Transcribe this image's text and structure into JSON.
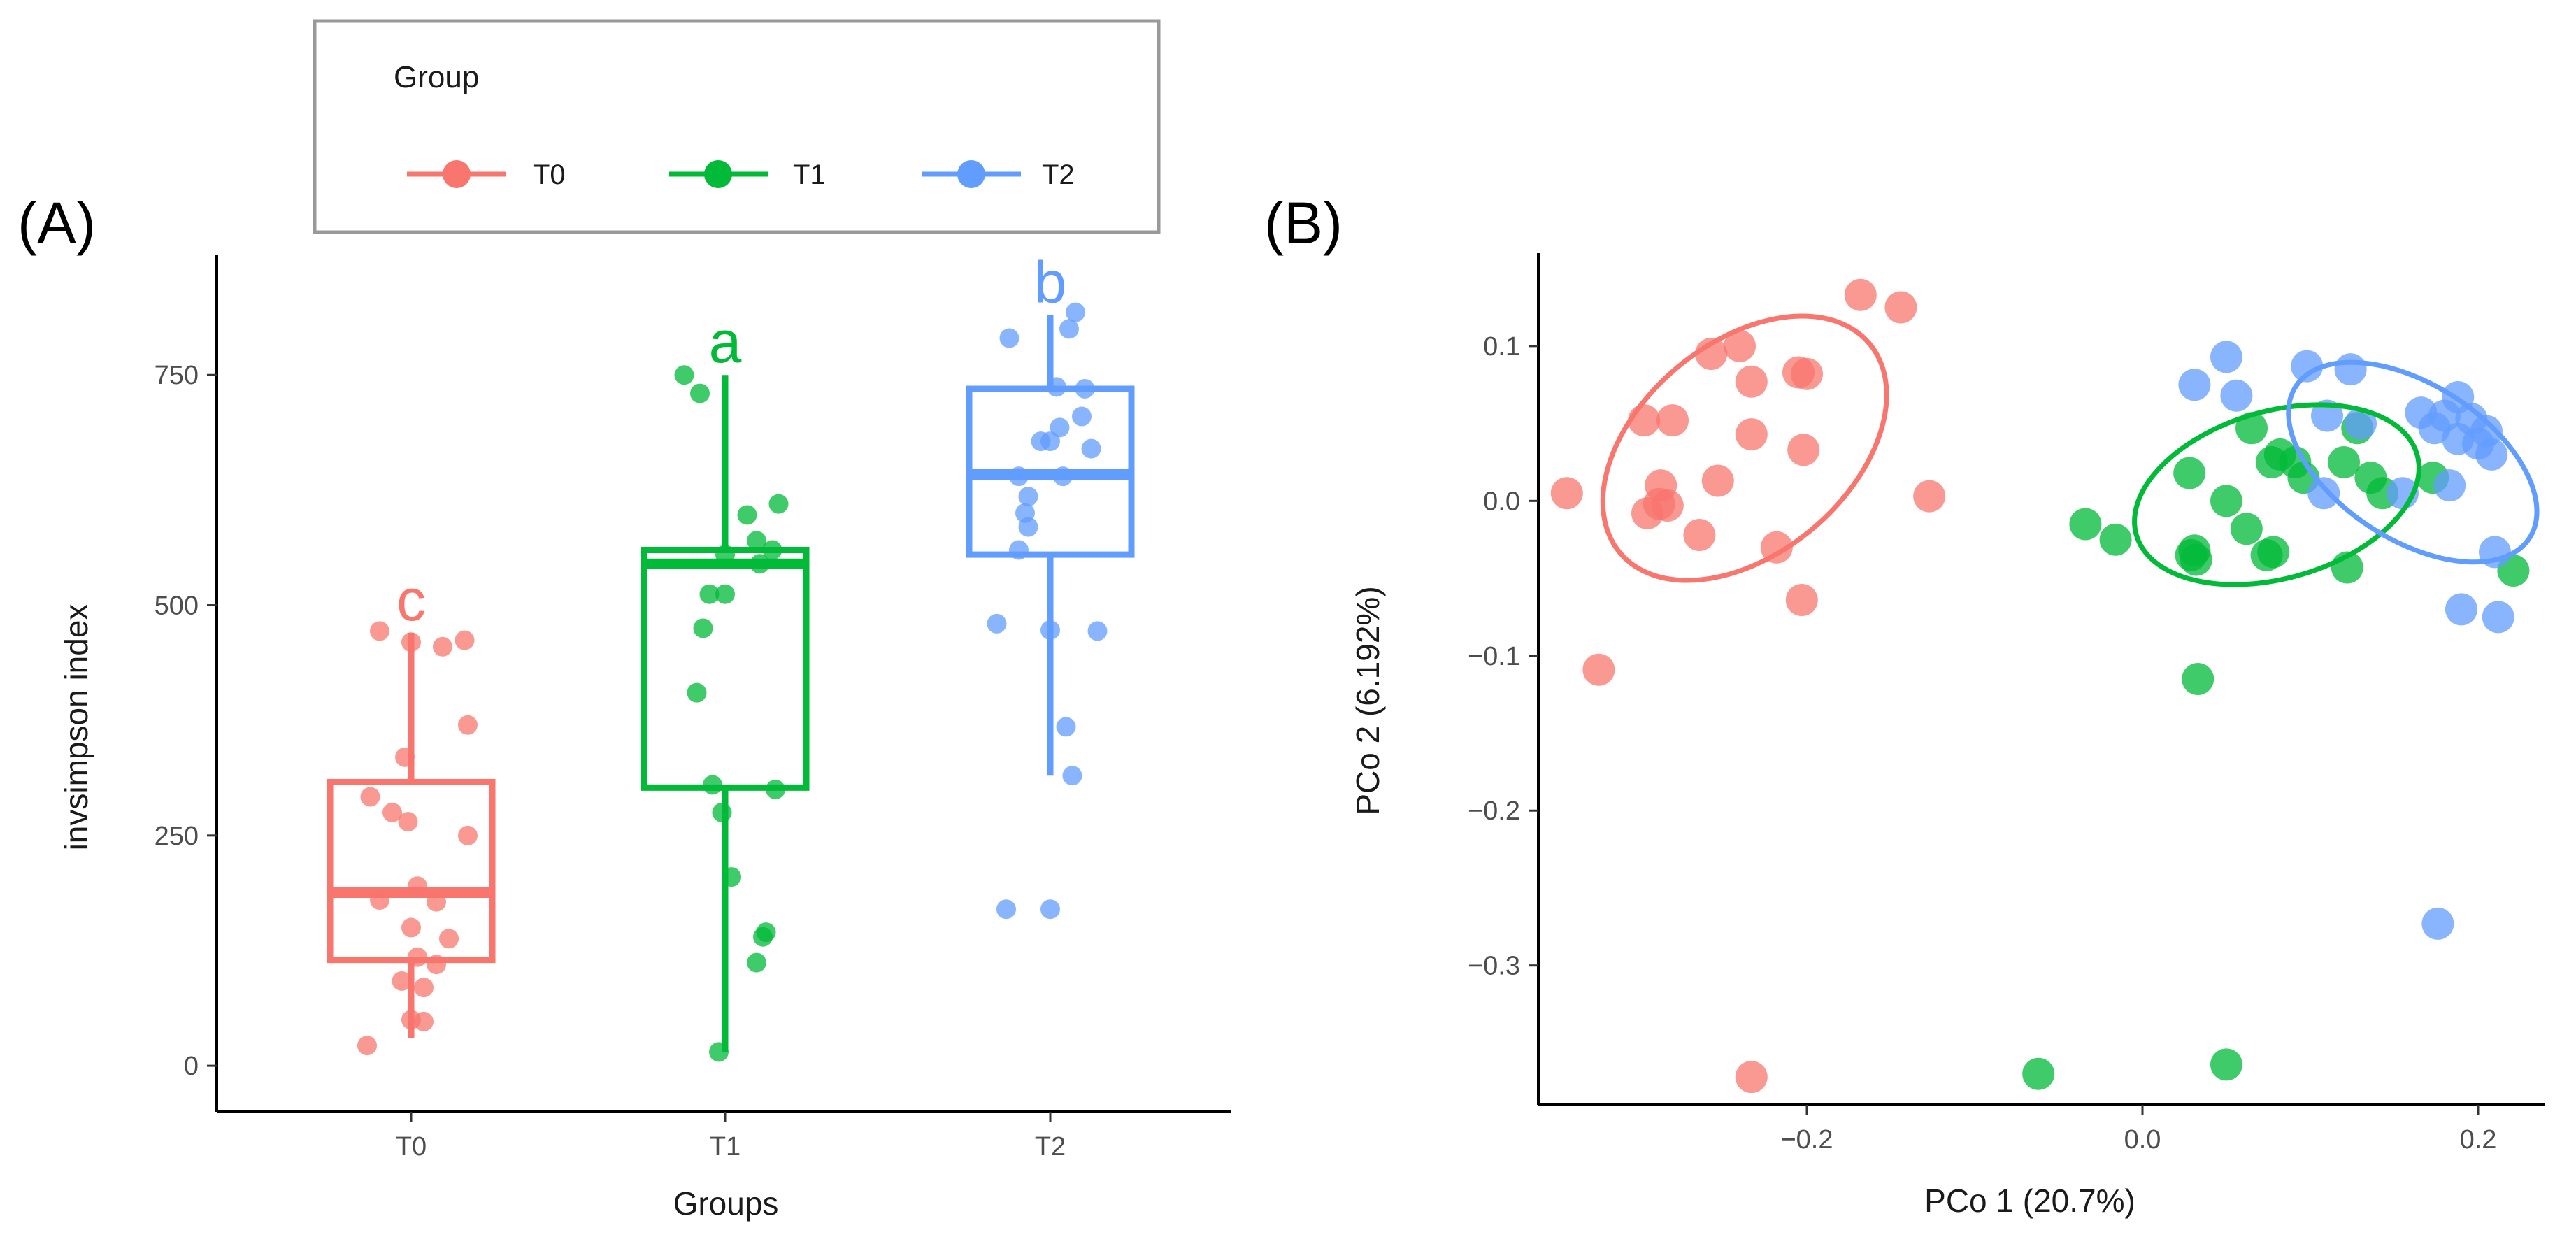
{
  "colors": {
    "T0": "#F8766D",
    "T1": "#00BA38",
    "T2": "#619CFF"
  },
  "legend": {
    "title": "Group",
    "entries": [
      {
        "label": "T0",
        "color": "#F8766D"
      },
      {
        "label": "T1",
        "color": "#00BA38"
      },
      {
        "label": "T2",
        "color": "#619CFF"
      }
    ]
  },
  "chart_data": [
    {
      "panel_label": "(A)",
      "type": "box",
      "title": "",
      "xlabel": "Groups",
      "ylabel": "invsimpson index",
      "ylim": [
        -50,
        880
      ],
      "yticks": [
        0,
        250,
        500,
        750
      ],
      "categories": [
        "T0",
        "T1",
        "T2"
      ],
      "boxes": [
        {
          "group": "T0",
          "whisker_low": 30,
          "q1": 115,
          "median": 188,
          "q3": 308,
          "whisker_high": 470,
          "letter": "c"
        },
        {
          "group": "T1",
          "whisker_low": 15,
          "q1": 302,
          "median": 545,
          "q3": 560,
          "whisker_high": 750,
          "letter": "a"
        },
        {
          "group": "T2",
          "whisker_low": 315,
          "q1": 555,
          "median": 642,
          "q3": 735,
          "whisker_high": 815,
          "letter": "b"
        }
      ],
      "points": {
        "T0": [
          [
            -0.1,
            472
          ],
          [
            0.1,
            455
          ],
          [
            0.17,
            462
          ],
          [
            0.0,
            460
          ],
          [
            0.18,
            370
          ],
          [
            -0.02,
            335
          ],
          [
            0.18,
            250
          ],
          [
            -0.13,
            292
          ],
          [
            -0.06,
            275
          ],
          [
            -0.01,
            265
          ],
          [
            0.02,
            195
          ],
          [
            -0.1,
            180
          ],
          [
            0.08,
            178
          ],
          [
            0.0,
            150
          ],
          [
            0.02,
            118
          ],
          [
            -0.03,
            92
          ],
          [
            0.04,
            85
          ],
          [
            0.08,
            110
          ],
          [
            0.0,
            50
          ],
          [
            0.12,
            138
          ],
          [
            0.04,
            48
          ],
          [
            -0.14,
            22
          ]
        ],
        "T1": [
          [
            -0.13,
            750
          ],
          [
            -0.08,
            730
          ],
          [
            0.17,
            610
          ],
          [
            0.07,
            598
          ],
          [
            0.1,
            570
          ],
          [
            0.15,
            560
          ],
          [
            0.0,
            555
          ],
          [
            0.11,
            545
          ],
          [
            -0.05,
            512
          ],
          [
            0.0,
            512
          ],
          [
            -0.07,
            475
          ],
          [
            -0.09,
            405
          ],
          [
            -0.04,
            305
          ],
          [
            0.16,
            300
          ],
          [
            -0.01,
            275
          ],
          [
            0.02,
            205
          ],
          [
            0.12,
            140
          ],
          [
            0.13,
            145
          ],
          [
            0.1,
            112
          ],
          [
            -0.02,
            15
          ]
        ],
        "T2": [
          [
            0.08,
            818
          ],
          [
            -0.13,
            790
          ],
          [
            0.06,
            800
          ],
          [
            0.11,
            735
          ],
          [
            0.02,
            737
          ],
          [
            0.1,
            705
          ],
          [
            0.03,
            693
          ],
          [
            0.13,
            670
          ],
          [
            0.0,
            678
          ],
          [
            -0.03,
            678
          ],
          [
            -0.1,
            640
          ],
          [
            0.04,
            640
          ],
          [
            -0.07,
            618
          ],
          [
            -0.08,
            600
          ],
          [
            -0.07,
            585
          ],
          [
            -0.1,
            560
          ],
          [
            -0.17,
            480
          ],
          [
            0.0,
            473
          ],
          [
            0.15,
            472
          ],
          [
            0.05,
            368
          ],
          [
            0.07,
            315
          ],
          [
            -0.14,
            170
          ],
          [
            0.0,
            170
          ]
        ]
      }
    },
    {
      "panel_label": "(B)",
      "type": "scatter",
      "title": "",
      "xlabel": "PCo 1 (20.7%)",
      "ylabel": "PCo 2 (6.192%)",
      "xlim": [
        -0.36,
        0.24
      ],
      "ylim": [
        -0.39,
        0.16
      ],
      "xticks": [
        -0.2,
        0.0,
        0.2
      ],
      "xtick_labels": [
        "−0.2",
        "0.0",
        "0.2"
      ],
      "yticks": [
        -0.3,
        -0.2,
        -0.1,
        0.0,
        0.1
      ],
      "ytick_labels": [
        "−0.3",
        "−0.2",
        "−0.1",
        "0.0",
        "0.1"
      ],
      "series": [
        {
          "name": "T0",
          "points": [
            [
              -0.168,
              0.133
            ],
            [
              -0.144,
              0.125
            ],
            [
              -0.257,
              0.095
            ],
            [
              -0.24,
              0.1
            ],
            [
              -0.233,
              0.077
            ],
            [
              -0.205,
              0.083
            ],
            [
              -0.2,
              0.082
            ],
            [
              -0.297,
              0.052
            ],
            [
              -0.28,
              0.052
            ],
            [
              -0.233,
              0.043
            ],
            [
              -0.202,
              0.033
            ],
            [
              -0.343,
              0.005
            ],
            [
              -0.287,
              0.01
            ],
            [
              -0.253,
              0.013
            ],
            [
              -0.288,
              -0.002
            ],
            [
              -0.283,
              -0.003
            ],
            [
              -0.295,
              -0.008
            ],
            [
              -0.264,
              -0.022
            ],
            [
              -0.218,
              -0.03
            ],
            [
              -0.203,
              -0.064
            ],
            [
              -0.127,
              0.003
            ],
            [
              -0.324,
              -0.109
            ],
            [
              -0.233,
              -0.372
            ]
          ]
        },
        {
          "name": "T1",
          "points": [
            [
              0.065,
              0.047
            ],
            [
              0.128,
              0.047
            ],
            [
              0.082,
              0.03
            ],
            [
              0.077,
              0.025
            ],
            [
              0.091,
              0.025
            ],
            [
              0.12,
              0.025
            ],
            [
              0.136,
              0.015
            ],
            [
              0.173,
              0.015
            ],
            [
              0.028,
              0.018
            ],
            [
              0.096,
              0.015
            ],
            [
              0.05,
              0.0
            ],
            [
              0.143,
              0.005
            ],
            [
              0.062,
              -0.018
            ],
            [
              0.031,
              -0.032
            ],
            [
              0.029,
              -0.035
            ],
            [
              0.032,
              -0.038
            ],
            [
              0.074,
              -0.035
            ],
            [
              0.078,
              -0.033
            ],
            [
              0.122,
              -0.043
            ],
            [
              -0.034,
              -0.015
            ],
            [
              -0.016,
              -0.025
            ],
            [
              0.221,
              -0.045
            ],
            [
              0.033,
              -0.115
            ],
            [
              -0.062,
              -0.37
            ],
            [
              0.05,
              -0.364
            ]
          ]
        },
        {
          "name": "T2",
          "points": [
            [
              0.05,
              0.093
            ],
            [
              0.124,
              0.085
            ],
            [
              0.098,
              0.087
            ],
            [
              0.031,
              0.075
            ],
            [
              0.056,
              0.068
            ],
            [
              0.11,
              0.055
            ],
            [
              0.13,
              0.05
            ],
            [
              0.166,
              0.057
            ],
            [
              0.18,
              0.055
            ],
            [
              0.188,
              0.067
            ],
            [
              0.174,
              0.047
            ],
            [
              0.196,
              0.053
            ],
            [
              0.205,
              0.045
            ],
            [
              0.2,
              0.037
            ],
            [
              0.188,
              0.04
            ],
            [
              0.208,
              0.03
            ],
            [
              0.183,
              0.01
            ],
            [
              0.155,
              0.005
            ],
            [
              0.108,
              0.005
            ],
            [
              0.21,
              -0.033
            ],
            [
              0.19,
              -0.07
            ],
            [
              0.212,
              -0.075
            ],
            [
              0.176,
              -0.273
            ]
          ]
        }
      ],
      "ellipses": [
        {
          "group": "T0",
          "center": [
            -0.237,
            0.034
          ],
          "semi_major": 0.097,
          "semi_minor": 0.068,
          "angle_deg": 40
        },
        {
          "group": "T1",
          "center": [
            0.08,
            0.004
          ],
          "semi_major": 0.087,
          "semi_minor": 0.054,
          "angle_deg": 16
        },
        {
          "group": "T2",
          "center": [
            0.161,
            0.025
          ],
          "semi_major": 0.083,
          "semi_minor": 0.05,
          "angle_deg": -33
        }
      ]
    }
  ]
}
